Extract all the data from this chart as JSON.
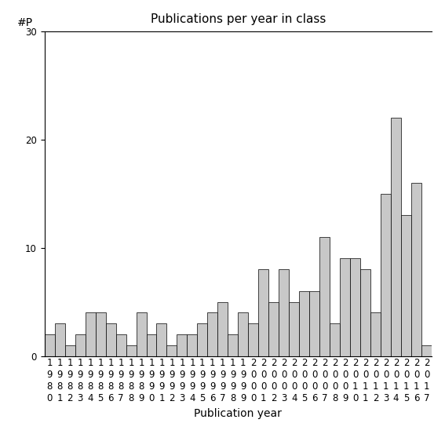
{
  "title": "Publications per year in class",
  "xlabel": "Publication year",
  "ylabel": "#P",
  "years": [
    1980,
    1981,
    1982,
    1983,
    1984,
    1985,
    1986,
    1987,
    1988,
    1989,
    1990,
    1991,
    1992,
    1993,
    1994,
    1995,
    1996,
    1997,
    1998,
    1999,
    2000,
    2001,
    2002,
    2003,
    2004,
    2005,
    2006,
    2007,
    2008,
    2009,
    2010,
    2011,
    2012,
    2013,
    2014,
    2015,
    2016,
    2017
  ],
  "values": [
    2,
    3,
    1,
    2,
    4,
    4,
    3,
    2,
    1,
    4,
    2,
    3,
    1,
    2,
    2,
    3,
    4,
    5,
    2,
    4,
    3,
    8,
    5,
    8,
    5,
    6,
    6,
    11,
    3,
    9,
    9,
    8,
    4,
    15,
    22,
    13,
    16,
    1
  ],
  "bar_color": "#c8c8c8",
  "bar_edge_color": "#000000",
  "ylim": [
    0,
    30
  ],
  "yticks": [
    0,
    10,
    20,
    30
  ],
  "background_color": "#ffffff",
  "title_fontsize": 11,
  "axis_label_fontsize": 10,
  "tick_fontsize": 8.5
}
